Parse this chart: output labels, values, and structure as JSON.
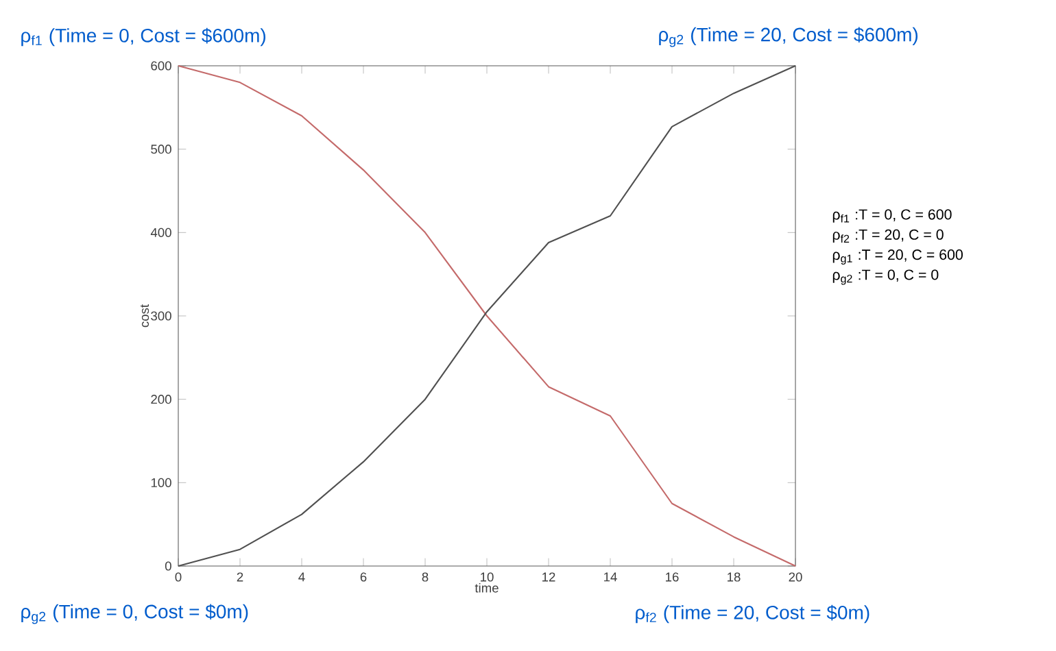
{
  "chart_data": {
    "type": "line",
    "xlabel": "time",
    "ylabel": "cost",
    "x": [
      0,
      2,
      4,
      6,
      8,
      10,
      12,
      14,
      16,
      18,
      20
    ],
    "series": [
      {
        "color": "#c46a6a",
        "values": [
          600,
          580,
          540,
          475,
          400,
          300,
          215,
          180,
          75,
          35,
          0
        ]
      },
      {
        "color": "#505050",
        "values": [
          0,
          20,
          62,
          125,
          200,
          305,
          388,
          420,
          527,
          567,
          600
        ]
      }
    ],
    "xlim": [
      0,
      20
    ],
    "ylim": [
      0,
      600
    ],
    "xticks": [
      0,
      2,
      4,
      6,
      8,
      10,
      12,
      14,
      16,
      18,
      20
    ],
    "yticks": [
      0,
      100,
      200,
      300,
      400,
      500,
      600
    ],
    "marker": "none",
    "line_style": "solid",
    "annotations": [
      "ρ$_{f1}$ (Time = 0, Cost = $600m)",
      "ρ$_{g2}$ (Time = 20, Cost = $600m)",
      "ρ$_{g2}$ (Time = 0, Cost = $0m)",
      "ρ$_{f2}$ (Time = 20, Cost = $0m)",
      "ρ$_{f1}$ :T = 0, C  = 600",
      "ρ$_{f2}$ :T = 20, C = 0",
      "ρ$_{g1}$ :T = 20, C  = 600",
      "ρ$_{g2}$ :T = 0, C  = 0"
    ]
  }
}
